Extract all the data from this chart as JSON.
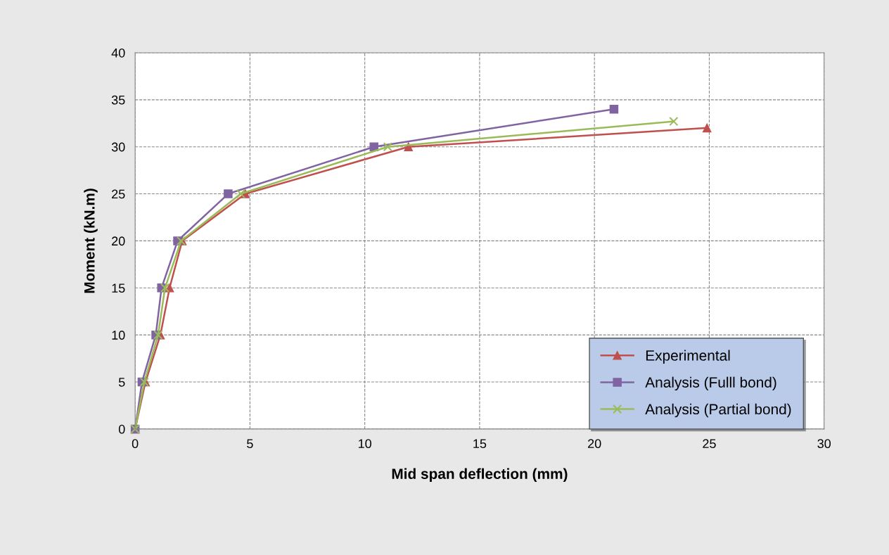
{
  "chart_data": {
    "type": "line",
    "xlabel": "Mid span deflection (mm)",
    "ylabel": "Moment (kN.m)",
    "xlim": [
      0,
      30
    ],
    "xticks": [
      0,
      5,
      10,
      15,
      20,
      25,
      30
    ],
    "ylim": [
      0,
      40
    ],
    "yticks": [
      0,
      5,
      10,
      15,
      20,
      25,
      30,
      35,
      40
    ],
    "grid": true,
    "legend": "bottom right",
    "line_style": "solid",
    "series": [
      {
        "name": "Experimental",
        "color": "#c0504d",
        "marker": "triangle",
        "x": [
          0,
          0.45,
          1.1,
          1.5,
          2.05,
          4.8,
          11.9,
          24.9
        ],
        "values": [
          0,
          5,
          10,
          15,
          20,
          25,
          30,
          32
        ]
      },
      {
        "name": "Analysis (Fulll bond)",
        "color": "#8064a2",
        "marker": "square",
        "x": [
          0,
          0.3,
          0.9,
          1.15,
          1.85,
          4.05,
          10.4,
          20.85
        ],
        "values": [
          0,
          5,
          10,
          15,
          20,
          25,
          30,
          34
        ]
      },
      {
        "name": "Analysis (Partial bond)",
        "color": "#9bbb59",
        "marker": "cross",
        "x": [
          0,
          0.4,
          1.0,
          1.3,
          2.0,
          4.6,
          11.0,
          23.45
        ],
        "values": [
          0,
          5,
          10,
          15,
          20,
          25,
          30,
          32.7
        ]
      }
    ]
  }
}
